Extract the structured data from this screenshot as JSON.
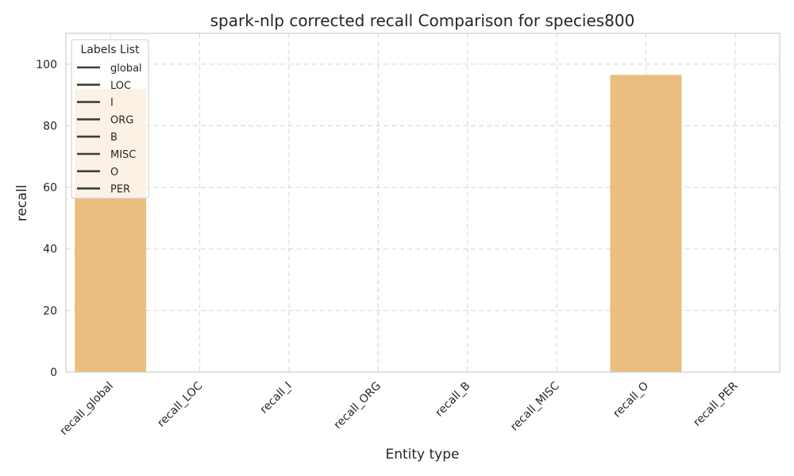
{
  "chart_data": {
    "type": "bar",
    "title": "spark-nlp corrected recall Comparison for species800",
    "xlabel": "Entity type",
    "ylabel": "recall",
    "categories": [
      "recall_global",
      "recall_LOC",
      "recall_I",
      "recall_ORG",
      "recall_B",
      "recall_MISC",
      "recall_O",
      "recall_PER"
    ],
    "values": [
      92,
      0,
      0,
      0,
      0,
      0,
      96.5,
      0
    ],
    "ylim": [
      0,
      110
    ],
    "yticks": [
      0,
      20,
      40,
      60,
      80,
      100
    ],
    "grid": true,
    "bar_color": "#ebbd7e",
    "legend": {
      "title": "Labels List",
      "placement": "top-left",
      "entries": [
        "global",
        "LOC",
        "I",
        "ORG",
        "B",
        "MISC",
        "O",
        "PER"
      ],
      "line_color": "#3d3d3d"
    }
  }
}
